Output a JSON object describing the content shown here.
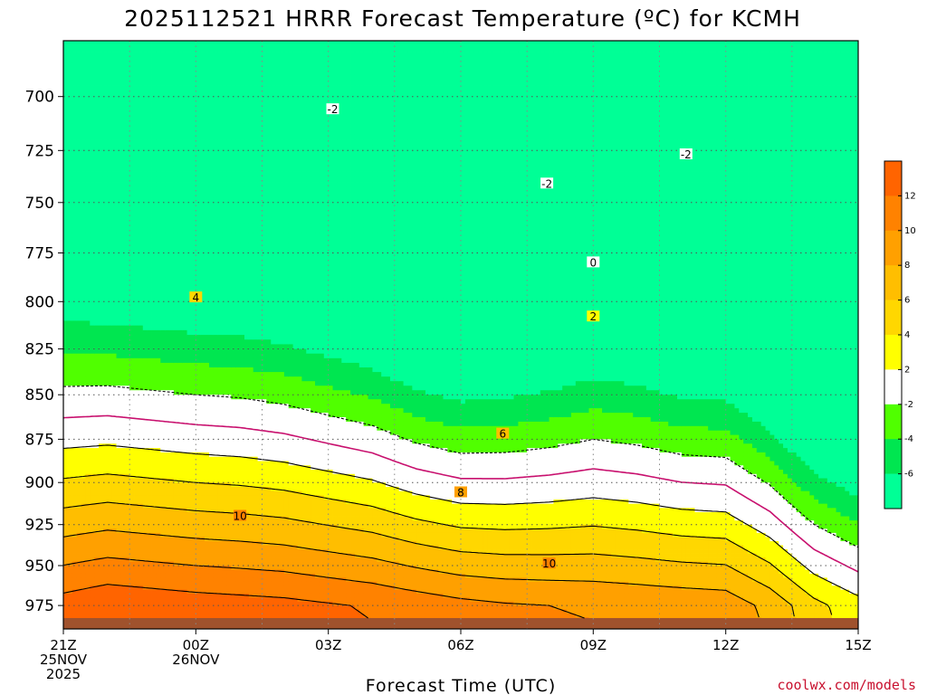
{
  "chart_data": {
    "type": "heatmap",
    "title": "2025112521 HRRR Forecast Temperature (ºC) for KCMH",
    "xlabel": "Forecast Time (UTC)",
    "ylabel": "",
    "credit": "coolwx.com/models",
    "ylim": [
      990,
      675
    ],
    "xlim": [
      0,
      18
    ],
    "y_ticks": [
      700,
      725,
      750,
      775,
      800,
      825,
      850,
      875,
      900,
      925,
      950,
      975
    ],
    "x_ticks": [
      {
        "x": 0,
        "lines": [
          "21Z",
          "25NOV",
          "2025"
        ]
      },
      {
        "x": 3,
        "lines": [
          "00Z",
          "26NOV"
        ]
      },
      {
        "x": 6,
        "lines": [
          "03Z"
        ]
      },
      {
        "x": 9,
        "lines": [
          "06Z"
        ]
      },
      {
        "x": 12,
        "lines": [
          "09Z"
        ]
      },
      {
        "x": 15,
        "lines": [
          "12Z"
        ]
      },
      {
        "x": 18,
        "lines": [
          "15Z"
        ]
      }
    ],
    "grid": true,
    "surface_level_hpa": 983,
    "colorbar": {
      "ticks": [
        12,
        10,
        8,
        6,
        4,
        2,
        -2,
        -4,
        -6
      ],
      "bins": [
        {
          "min": 12,
          "max": 14,
          "color": "#ff6400"
        },
        {
          "min": 10,
          "max": 12,
          "color": "#ff8200"
        },
        {
          "min": 8,
          "max": 10,
          "color": "#ffa000"
        },
        {
          "min": 6,
          "max": 8,
          "color": "#ffbe00"
        },
        {
          "min": 4,
          "max": 6,
          "color": "#ffd700"
        },
        {
          "min": 2,
          "max": 4,
          "color": "#ffff00"
        },
        {
          "min": -2,
          "max": 2,
          "color": "#ffffff"
        },
        {
          "min": -4,
          "max": -2,
          "color": "#50ff00"
        },
        {
          "min": -6,
          "max": -4,
          "color": "#00e650"
        },
        {
          "min": -8,
          "max": -6,
          "color": "#00ff96"
        }
      ],
      "surface_color": "#a0522d",
      "freezing_line_color": "#c8106e"
    },
    "contour_labels": [
      {
        "text": "-2",
        "x": 6.1,
        "p": 706
      },
      {
        "text": "-2",
        "x": 10.95,
        "p": 741
      },
      {
        "text": "-2",
        "x": 14.1,
        "p": 727
      },
      {
        "text": "0",
        "x": 12.0,
        "p": 780
      },
      {
        "text": "2",
        "x": 12.0,
        "p": 808
      },
      {
        "text": "4",
        "x": 3.0,
        "p": 798
      },
      {
        "text": "6",
        "x": 9.95,
        "p": 872
      },
      {
        "text": "8",
        "x": 9.0,
        "p": 906
      },
      {
        "text": "10",
        "x": 4.0,
        "p": 920
      },
      {
        "text": "10",
        "x": 11.0,
        "p": 949
      }
    ]
  }
}
